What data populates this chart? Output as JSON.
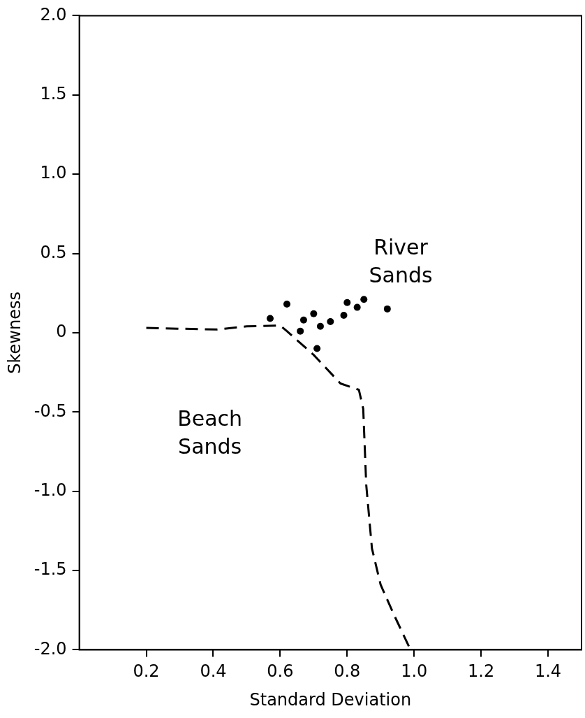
{
  "chart_data": {
    "type": "scatter",
    "xlabel": "Standard Deviation",
    "ylabel": "Skewness",
    "xlim": [
      0,
      1.5
    ],
    "ylim": [
      -2,
      2
    ],
    "xticks": [
      0.2,
      0.4,
      0.6,
      0.8,
      {
        "value": 1,
        "label": "1.0"
      },
      1.2,
      1.4
    ],
    "yticks": [
      {
        "value": -2,
        "label": "-2.0"
      },
      {
        "value": -1.5,
        "label": "-1.5"
      },
      {
        "value": -1,
        "label": "-1.0"
      },
      {
        "value": -0.5,
        "label": "-0.5"
      },
      {
        "value": 0,
        "label": "0"
      },
      {
        "value": 0.5,
        "label": "0.5"
      },
      {
        "value": 1,
        "label": "1.0"
      },
      {
        "value": 1.5,
        "label": "1.5"
      },
      {
        "value": 2,
        "label": "2.0"
      }
    ],
    "grid": false,
    "legend": false,
    "series": [
      {
        "type": "scatter",
        "color": "#000000",
        "marker": "circle",
        "x": [
          0.57,
          0.62,
          0.67,
          0.7,
          0.66,
          0.72,
          0.75,
          0.71,
          0.79,
          0.8,
          0.83,
          0.85,
          0.92
        ],
        "values": [
          0.09,
          0.18,
          0.08,
          0.12,
          0.01,
          0.04,
          0.07,
          -0.1,
          0.11,
          0.19,
          0.16,
          0.21,
          0.15
        ]
      },
      {
        "type": "line",
        "color": "#000000",
        "marker": "none",
        "line_style": "dashed",
        "x": [
          0.2,
          0.41,
          0.5,
          0.6,
          0.62,
          0.7,
          0.78,
          0.835,
          0.848,
          0.857,
          0.874,
          0.9,
          0.94,
          0.987
        ],
        "values": [
          0.03,
          0.02,
          0.04,
          0.045,
          0.01,
          -0.14,
          -0.32,
          -0.36,
          -0.48,
          -0.96,
          -1.36,
          -1.59,
          -1.78,
          -1.99
        ]
      }
    ],
    "annotations": [
      "River Sands",
      "Beach Sands"
    ]
  }
}
